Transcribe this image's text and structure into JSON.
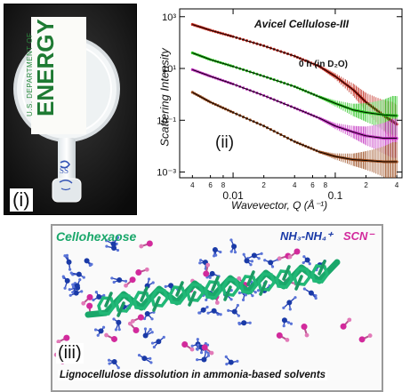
{
  "panel_i": {
    "tag": "(i)",
    "label_line1": "U.S. DEPARTMENT OF",
    "label_line2": "ENERGY",
    "handwriting": "SS"
  },
  "panel_ii": {
    "tag": "(ii)",
    "title": "Avicel Cellulose-III",
    "annotation": "0 h (in D₂O)",
    "colors": {
      "curve_0h": "#c0281c",
      "curve_2": "#27c31d",
      "curve_3": "#c22ec0",
      "curve_4": "#9a4a1c",
      "fit": "#000000"
    }
  },
  "panel_iii": {
    "tag": "(iii)",
    "label_cellohexaose": "Cellohexaose",
    "label_ammonia": "NH₃-NH₄⁺",
    "label_scn": "SCN⁻",
    "caption": "Lignocellulose dissolution in ammonia-based solvents",
    "colors": {
      "cellohexaose": "#19a76a",
      "ammonia": "#1a3aa7",
      "scn": "#d22a9c"
    }
  },
  "chart_data": {
    "type": "line",
    "title": "Avicel Cellulose-III",
    "xlabel": "Wavevector, Q (Å⁻¹)",
    "ylabel": "Scattering Intensity",
    "xscale": "log",
    "yscale": "log",
    "xlim": [
      0.003,
      0.45
    ],
    "ylim": [
      0.0006,
      2000
    ],
    "x_ticks": [
      0.01,
      0.1
    ],
    "x_tick_labels": [
      "0.01",
      "0.1"
    ],
    "x_minor_labels": [
      {
        "x": 0.004,
        "label": "4"
      },
      {
        "x": 0.006,
        "label": "6"
      },
      {
        "x": 0.008,
        "label": "8"
      },
      {
        "x": 0.02,
        "label": "2"
      },
      {
        "x": 0.04,
        "label": "4"
      },
      {
        "x": 0.06,
        "label": "6"
      },
      {
        "x": 0.08,
        "label": "8"
      },
      {
        "x": 0.2,
        "label": "2"
      },
      {
        "x": 0.4,
        "label": "4"
      }
    ],
    "y_ticks": [
      0.001,
      0.1,
      10,
      1000
    ],
    "y_tick_labels": [
      "10⁻³",
      "10⁻¹",
      "10¹",
      "10³"
    ],
    "annotation": "0 h (in D₂O)",
    "series": [
      {
        "name": "0 h (in D₂O)",
        "color": "#c0281c",
        "x": [
          0.004,
          0.006,
          0.01,
          0.02,
          0.04,
          0.07,
          0.1,
          0.15,
          0.2,
          0.3,
          0.4
        ],
        "y": [
          500,
          300,
          170,
          75,
          30,
          12,
          5,
          1.5,
          0.5,
          0.15,
          0.07
        ]
      },
      {
        "name": "",
        "color": "#27c31d",
        "x": [
          0.004,
          0.006,
          0.01,
          0.02,
          0.04,
          0.07,
          0.1,
          0.15,
          0.2,
          0.3,
          0.4
        ],
        "y": [
          40,
          22,
          12,
          5,
          2,
          0.8,
          0.45,
          0.25,
          0.2,
          0.16,
          0.15
        ]
      },
      {
        "name": "",
        "color": "#c22ec0",
        "x": [
          0.004,
          0.006,
          0.01,
          0.02,
          0.04,
          0.07,
          0.1,
          0.15,
          0.2,
          0.3,
          0.4
        ],
        "y": [
          9,
          5,
          2.5,
          0.9,
          0.3,
          0.12,
          0.06,
          0.035,
          0.025,
          0.02,
          0.02
        ]
      },
      {
        "name": "",
        "color": "#9a4a1c",
        "x": [
          0.004,
          0.006,
          0.01,
          0.02,
          0.04,
          0.07,
          0.1,
          0.15,
          0.2,
          0.3,
          0.4
        ],
        "y": [
          1.2,
          0.5,
          0.2,
          0.06,
          0.015,
          0.006,
          0.004,
          0.003,
          0.0028,
          0.0025,
          0.0025
        ]
      }
    ]
  }
}
